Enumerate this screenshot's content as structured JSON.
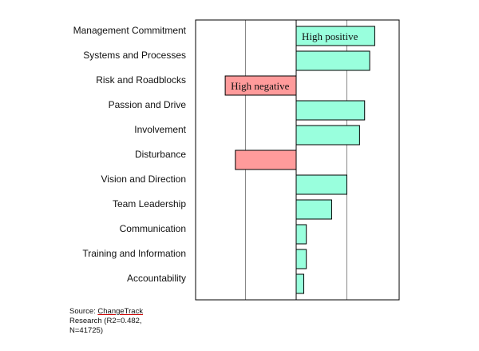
{
  "chart_data": {
    "type": "bar",
    "orientation": "horizontal",
    "categories": [
      "Management Commitment",
      "Systems and Processes",
      "Risk and Roadblocks",
      "Passion and Drive",
      "Involvement",
      "Disturbance",
      "Vision and Direction",
      "Team Leadership",
      "Communication",
      "Training and Information",
      "Accountability"
    ],
    "values": [
      1.55,
      1.45,
      -1.4,
      1.35,
      1.25,
      -1.2,
      1.0,
      0.7,
      0.2,
      0.2,
      0.15
    ],
    "xlim": [
      -2.0,
      2.0
    ],
    "gridlines": [
      -1.0,
      1.0
    ],
    "zero_line": true,
    "bar_labels": [
      {
        "index": 0,
        "text": "High positive"
      },
      {
        "index": 2,
        "text": "High negative"
      }
    ],
    "colors": {
      "positive": "#99ffdd",
      "negative": "#ff9b9b",
      "border": "#000000",
      "grid": "#888888"
    }
  },
  "source": {
    "prefix": "Source: ",
    "brand": "ChangeTrack",
    "suffix": " Research (R2=0.482, N=41725)"
  }
}
